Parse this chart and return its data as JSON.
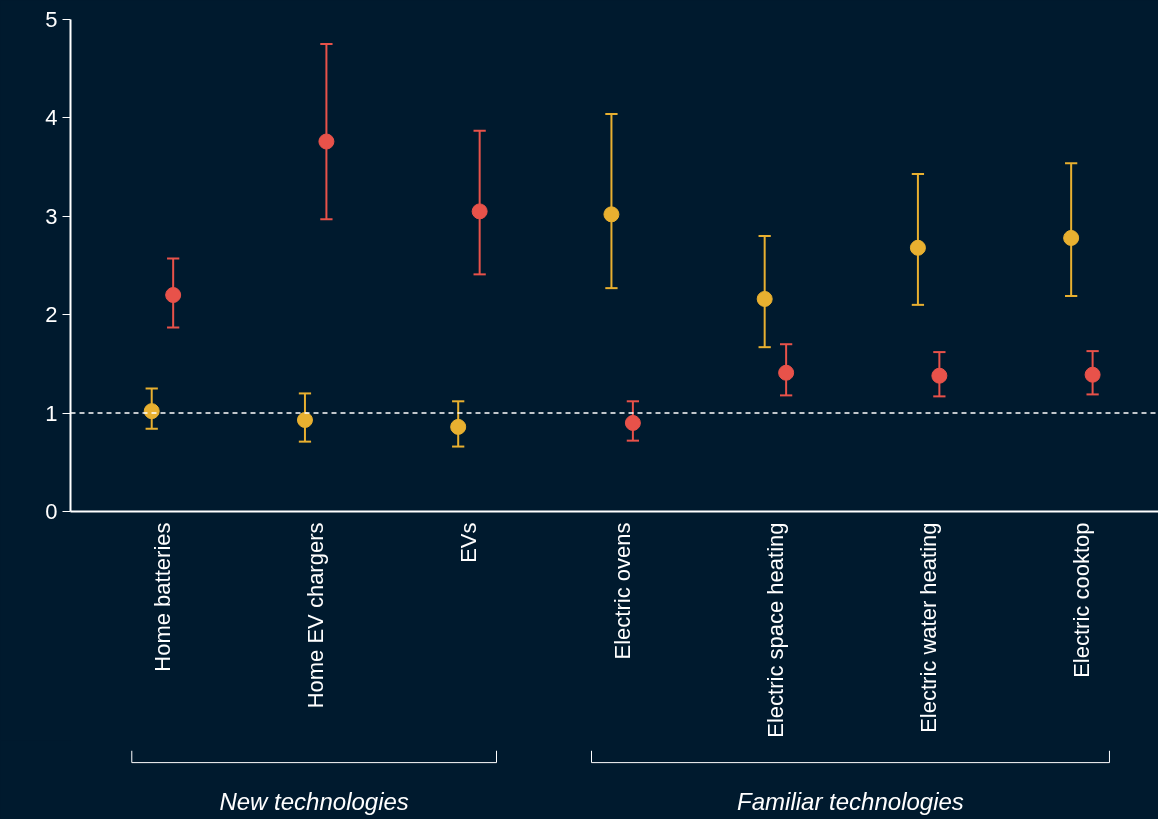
{
  "chart_data": {
    "type": "scatter",
    "categories": [
      "Home batteries",
      "Home EV chargers",
      "EVs",
      "Electric ovens",
      "Electric space heating",
      "Electric water heating",
      "Electric cooktop"
    ],
    "series": [
      {
        "color": "#e8b030",
        "values": [
          1.02,
          0.93,
          0.86,
          3.02,
          2.16,
          2.68,
          2.78
        ],
        "errors": [
          [
            0.84,
            1.25
          ],
          [
            0.71,
            1.2
          ],
          [
            0.66,
            1.12
          ],
          [
            2.27,
            4.04
          ],
          [
            1.67,
            2.8
          ],
          [
            2.1,
            3.43
          ],
          [
            2.19,
            3.54
          ]
        ]
      },
      {
        "color": "#e8524a",
        "values": [
          2.2,
          3.76,
          3.05,
          0.9,
          1.41,
          1.38,
          1.39
        ],
        "errors": [
          [
            1.87,
            2.57
          ],
          [
            2.97,
            4.75
          ],
          [
            2.41,
            3.87
          ],
          [
            0.72,
            1.12
          ],
          [
            1.18,
            1.7
          ],
          [
            1.17,
            1.62
          ],
          [
            1.19,
            1.63
          ]
        ]
      }
    ],
    "ylim": [
      0,
      5
    ],
    "yticks": [
      0,
      1,
      2,
      3,
      4,
      5
    ],
    "ref_lines": [
      {
        "axis": "y",
        "value": 1,
        "color": "#ffffff",
        "line_style": "dashed"
      }
    ],
    "annotations": [
      "New technologies",
      "Familiar technologies"
    ],
    "grid": false,
    "marker": "circle"
  }
}
